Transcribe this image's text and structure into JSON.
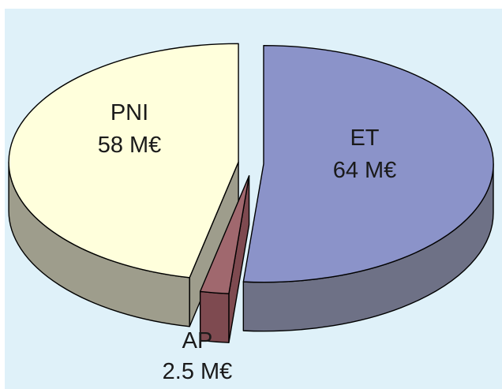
{
  "chart_data": {
    "type": "pie",
    "style": "3d-exploded",
    "slices": [
      {
        "label": "ET",
        "value_label": "64 M€",
        "value": 64,
        "color": "#8b93c9",
        "side_color": "#6e7186"
      },
      {
        "label": "AP",
        "value_label": "2.5 M€",
        "value": 2.5,
        "color": "#a0686e",
        "side_color": "#7e4a50"
      },
      {
        "label": "PNI",
        "value_label": "58 M€",
        "value": 58,
        "color": "#ffffdc",
        "side_color": "#9e9d8c"
      }
    ],
    "background": "#dff1f9"
  }
}
